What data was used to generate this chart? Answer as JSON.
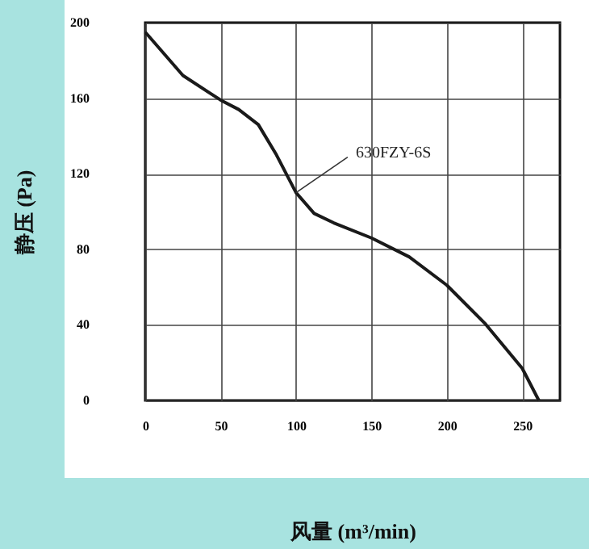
{
  "chart_data": {
    "type": "line",
    "xlabel": "风量 (m³/min)",
    "ylabel": "静压 (Pa)",
    "x": [
      0,
      25,
      50,
      62,
      75,
      87,
      100,
      112,
      125,
      150,
      175,
      200,
      225,
      250,
      261
    ],
    "series": [
      {
        "color": "#1a1a1a",
        "values": [
          195,
          172,
          159,
          154,
          146,
          130,
          110,
          99,
          94,
          86,
          76,
          61,
          41,
          17,
          0
        ]
      }
    ],
    "annotations": [
      {
        "text": "630FZY-6S",
        "x": 100,
        "y": 110
      }
    ],
    "xlim": [
      0,
      275
    ],
    "xticks": [
      0,
      50,
      100,
      150,
      200,
      250
    ],
    "ylim": [
      0,
      200
    ],
    "yticks": [
      0,
      40,
      80,
      120,
      160,
      200
    ],
    "grid": true,
    "marker": "none",
    "line_style": "solid"
  }
}
